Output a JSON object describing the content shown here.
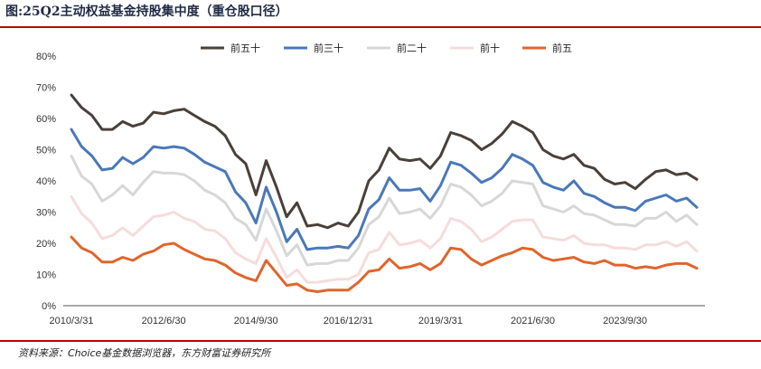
{
  "title": "图:25Q2主动权益基金持股集中度（重仓股口径）",
  "source": "资料来源：Choice基金数据浏览器，东方财富证券研究所",
  "chart_data": {
    "type": "line",
    "title": "图:25Q2主动权益基金持股集中度（重仓股口径）",
    "xlabel": "",
    "ylabel": "",
    "ylim": [
      0,
      80
    ],
    "y_ticks": [
      "0%",
      "10%",
      "20%",
      "30%",
      "40%",
      "50%",
      "60%",
      "70%",
      "80%"
    ],
    "y_tick_values": [
      0,
      10,
      20,
      30,
      40,
      50,
      60,
      70,
      80
    ],
    "x_tick_labels": [
      "2010/3/31",
      "2012/6/30",
      "2014/9/30",
      "2016/12/31",
      "2019/3/31",
      "2021/6/30",
      "2023/9/30"
    ],
    "x_tick_indices": [
      0,
      9,
      18,
      27,
      36,
      45,
      54
    ],
    "legend_position": "top",
    "series": [
      {
        "name": "前五十",
        "color": "#4a403a",
        "values": [
          67.5,
          63.5,
          61,
          56.5,
          56.5,
          59,
          57.5,
          58.5,
          62,
          61.5,
          62.5,
          63,
          61,
          59,
          57.5,
          54.5,
          48.5,
          45.5,
          35.5,
          46.5,
          38,
          28.5,
          33,
          25.5,
          26,
          25,
          26.5,
          25.5,
          30,
          40,
          43.5,
          50.5,
          47,
          46.5,
          47,
          44,
          48,
          55.5,
          54.5,
          53,
          50,
          52,
          55,
          59,
          57.5,
          55.5,
          50,
          48,
          47,
          48.5,
          45,
          44,
          40.5,
          39,
          39.5,
          37.5,
          40.5,
          43,
          43.5,
          42,
          42.5,
          40.5
        ]
      },
      {
        "name": "前三十",
        "color": "#4a78b9",
        "values": [
          56.5,
          51,
          48,
          43.5,
          44,
          47.5,
          45.5,
          47.5,
          51,
          50.5,
          51,
          50.5,
          48.5,
          46,
          44.5,
          43,
          36.5,
          33,
          26.5,
          38,
          30,
          20.5,
          24.5,
          18,
          18.5,
          18.5,
          19,
          18.5,
          22.5,
          31,
          34,
          41,
          37,
          37,
          37.5,
          33.5,
          38.5,
          46,
          45,
          42.5,
          39.5,
          41,
          44,
          48.5,
          47,
          45,
          39.5,
          38,
          37,
          40,
          36,
          35,
          33,
          31.5,
          31.5,
          30.5,
          33.5,
          34.5,
          35.5,
          33.5,
          34.5,
          31.5
        ]
      },
      {
        "name": "前二十",
        "color": "#d7d7d7",
        "values": [
          48,
          41.5,
          39,
          33.5,
          35.5,
          38.5,
          35.5,
          39.5,
          43,
          42.5,
          42.5,
          42,
          40,
          37,
          35.5,
          33,
          28,
          26,
          21,
          31,
          24,
          16,
          19.5,
          13,
          13.5,
          13.5,
          14.5,
          14.5,
          18.5,
          26,
          28.5,
          34.5,
          29.5,
          30,
          31,
          28,
          32,
          39,
          38,
          35.5,
          32,
          33.5,
          36,
          40,
          39.5,
          39,
          32,
          31,
          30,
          32,
          29.5,
          29,
          27.5,
          26,
          26,
          25.5,
          28,
          28,
          30,
          27,
          29,
          26
        ]
      },
      {
        "name": "前十",
        "color": "#f6dcdc",
        "values": [
          35,
          29.5,
          26.5,
          21.5,
          22.5,
          25,
          22.5,
          25.5,
          28.5,
          29,
          30,
          28,
          27,
          24.5,
          24,
          21.5,
          17,
          15,
          13.5,
          21.5,
          15.5,
          9,
          11.5,
          7.5,
          7.5,
          8,
          8.5,
          8.5,
          10,
          17,
          18,
          23.5,
          19.5,
          20,
          21,
          18.5,
          21.5,
          28,
          27,
          24.5,
          20.5,
          22,
          24.5,
          27,
          27.5,
          27.5,
          22,
          21.5,
          21,
          22.5,
          20,
          19.5,
          19.5,
          18.5,
          18.5,
          18,
          19.5,
          19.5,
          20.5,
          19,
          20.5,
          17.5
        ]
      },
      {
        "name": "前五",
        "color": "#e0652c",
        "values": [
          22,
          18.5,
          17,
          14,
          14,
          15.5,
          14.5,
          16.5,
          17.5,
          19.5,
          20,
          18,
          16.5,
          15,
          14.5,
          13,
          10.5,
          9,
          8,
          14.5,
          10.5,
          6.5,
          7,
          5,
          4.5,
          5,
          5,
          5,
          7.5,
          11,
          11.5,
          15,
          12,
          12.5,
          13.5,
          11.5,
          13.5,
          18.5,
          18,
          15,
          13,
          14.5,
          16,
          17,
          18.5,
          18,
          15.5,
          14.5,
          15,
          15.5,
          14,
          13.5,
          14.5,
          13,
          13,
          12,
          12.5,
          12,
          13,
          13.5,
          13.5,
          12
        ]
      }
    ]
  }
}
